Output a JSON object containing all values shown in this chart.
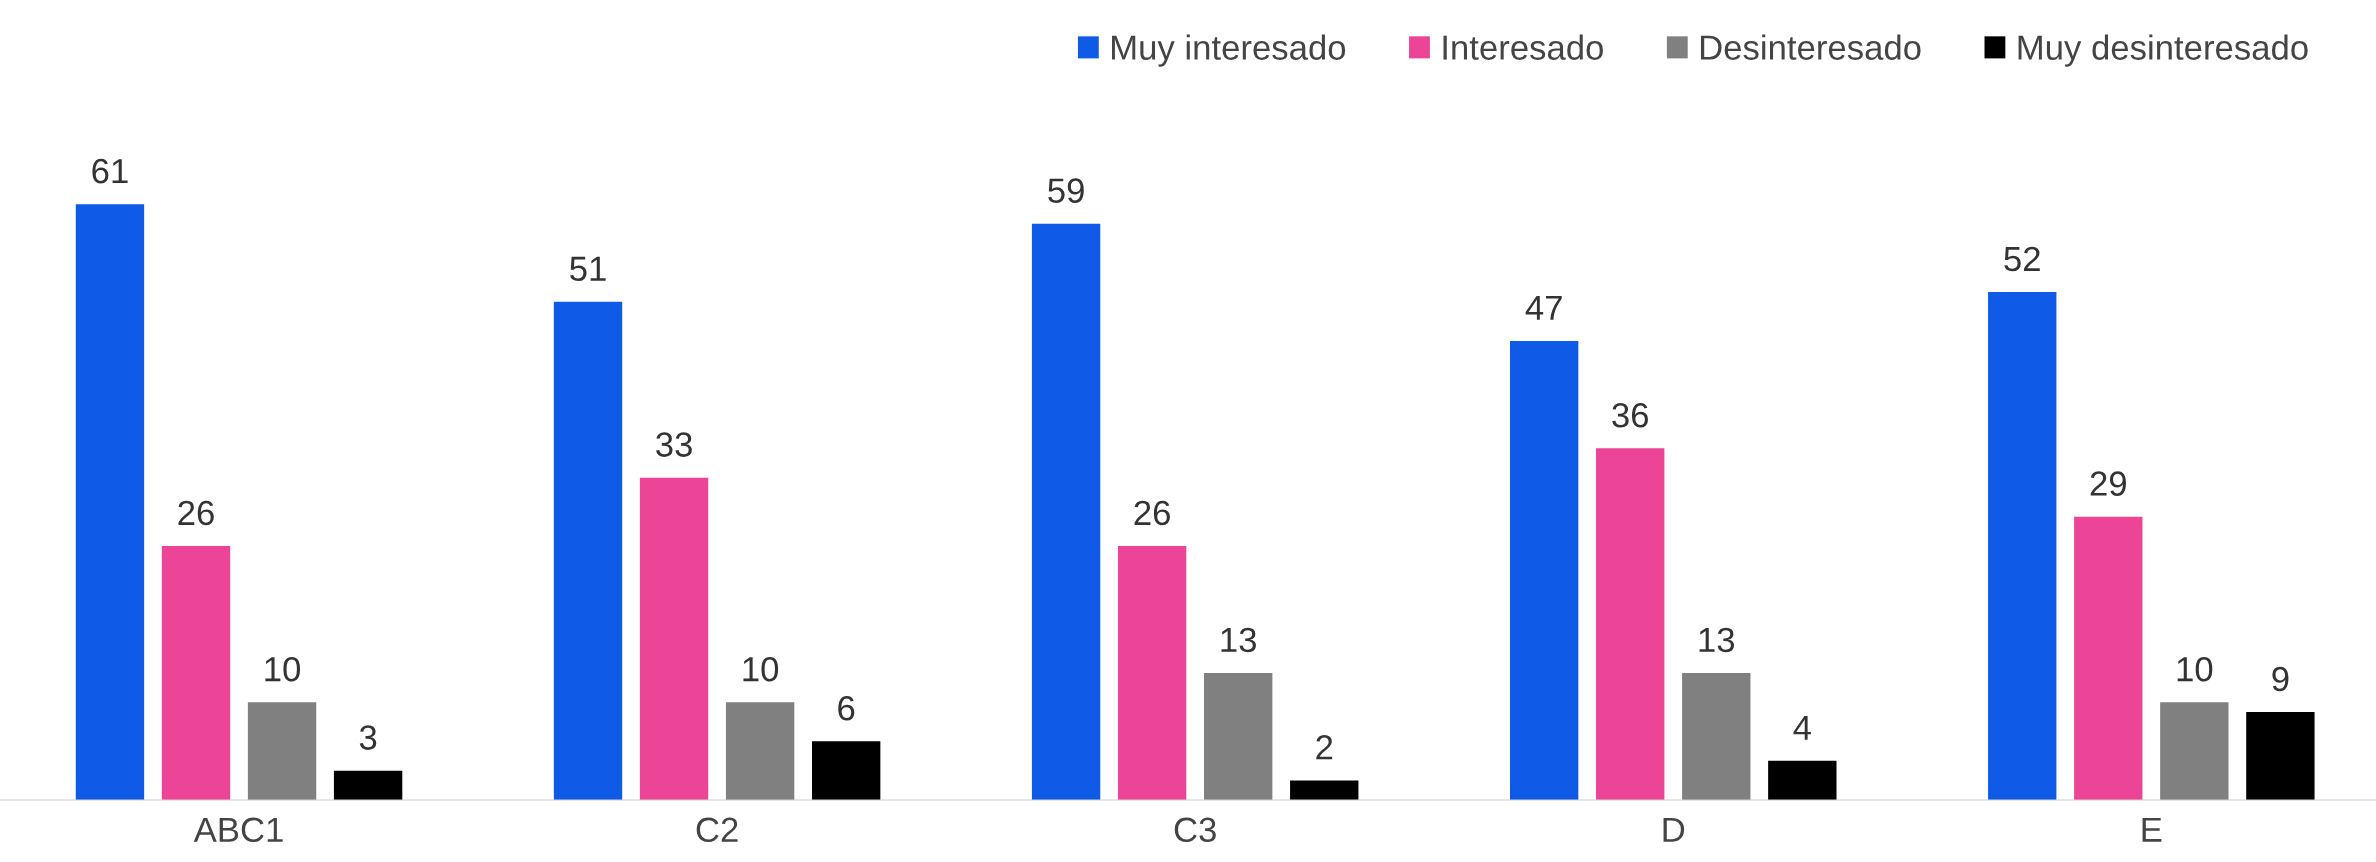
{
  "chart_data": {
    "type": "bar",
    "categories": [
      "ABC1",
      "C2",
      "C3",
      "D",
      "E"
    ],
    "series": [
      {
        "name": "Muy interesado",
        "color": "#0f5ae6",
        "values": [
          61,
          51,
          59,
          47,
          52
        ]
      },
      {
        "name": "Interesado",
        "color": "#ec4496",
        "values": [
          26,
          33,
          26,
          36,
          29
        ]
      },
      {
        "name": "Desinteresado",
        "color": "#808080",
        "values": [
          10,
          10,
          13,
          13,
          10
        ]
      },
      {
        "name": "Muy desinteresado",
        "color": "#000000",
        "values": [
          3,
          6,
          2,
          4,
          9
        ]
      }
    ],
    "data_labels": true,
    "legend": "top right",
    "grid": false
  }
}
